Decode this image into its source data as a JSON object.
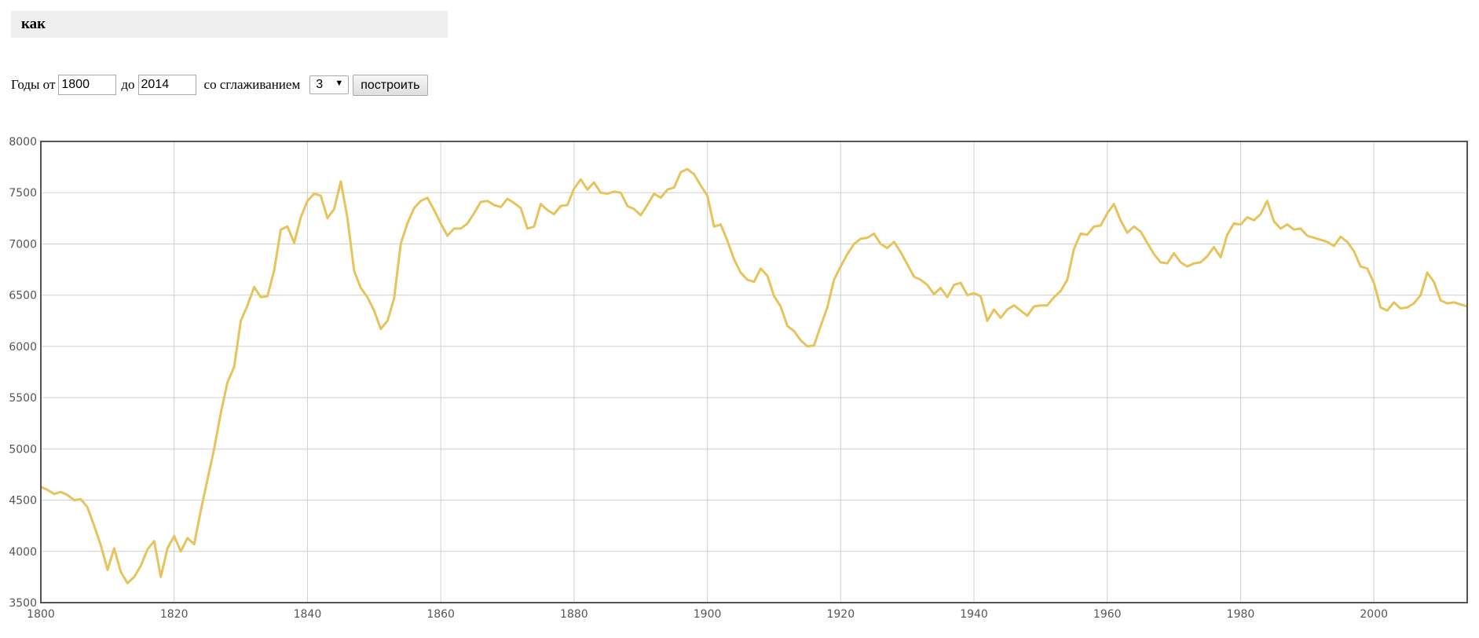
{
  "query": {
    "text": "как"
  },
  "controls": {
    "years_from_label": "Годы от",
    "year_from": "1800",
    "to_label": "до",
    "year_to": "2014",
    "smoothing_label": "со сглаживанием",
    "smoothing_value": "3",
    "build_button": "построить"
  },
  "colors": {
    "line": "#e6c35c",
    "grid": "#d0d0d0",
    "frame": "#555555"
  },
  "chart_data": {
    "type": "line",
    "title": "",
    "xlabel": "",
    "ylabel": "",
    "xlim": [
      1800,
      2014
    ],
    "ylim": [
      3500,
      8000
    ],
    "grid": true,
    "x_ticks": [
      1800,
      1820,
      1840,
      1860,
      1880,
      1900,
      1920,
      1940,
      1960,
      1980,
      2000
    ],
    "y_ticks": [
      3500,
      4000,
      4500,
      5000,
      5500,
      6000,
      6500,
      7000,
      7500,
      8000
    ],
    "series": [
      {
        "x": [
          1800,
          1801,
          1802,
          1803,
          1804,
          1805,
          1806,
          1807,
          1808,
          1809,
          1810,
          1811,
          1812,
          1813,
          1814,
          1815,
          1816,
          1817,
          1818,
          1819,
          1820,
          1821,
          1822,
          1823,
          1824,
          1825,
          1826,
          1827,
          1828,
          1829,
          1830,
          1831,
          1832,
          1833,
          1834,
          1835,
          1836,
          1837,
          1838,
          1839,
          1840,
          1841,
          1842,
          1843,
          1844,
          1845,
          1846,
          1847,
          1848,
          1849,
          1850,
          1851,
          1852,
          1853,
          1854,
          1855,
          1856,
          1857,
          1858,
          1859,
          1860,
          1861,
          1862,
          1863,
          1864,
          1865,
          1866,
          1867,
          1868,
          1869,
          1870,
          1871,
          1872,
          1873,
          1874,
          1875,
          1876,
          1877,
          1878,
          1879,
          1880,
          1881,
          1882,
          1883,
          1884,
          1885,
          1886,
          1887,
          1888,
          1889,
          1890,
          1891,
          1892,
          1893,
          1894,
          1895,
          1896,
          1897,
          1898,
          1899,
          1900,
          1901,
          1902,
          1903,
          1904,
          1905,
          1906,
          1907,
          1908,
          1909,
          1910,
          1911,
          1912,
          1913,
          1914,
          1915,
          1916,
          1917,
          1918,
          1919,
          1920,
          1921,
          1922,
          1923,
          1924,
          1925,
          1926,
          1927,
          1928,
          1929,
          1930,
          1931,
          1932,
          1933,
          1934,
          1935,
          1936,
          1937,
          1938,
          1939,
          1940,
          1941,
          1942,
          1943,
          1944,
          1945,
          1946,
          1947,
          1948,
          1949,
          1950,
          1951,
          1952,
          1953,
          1954,
          1955,
          1956,
          1957,
          1958,
          1959,
          1960,
          1961,
          1962,
          1963,
          1964,
          1965,
          1966,
          1967,
          1968,
          1969,
          1970,
          1971,
          1972,
          1973,
          1974,
          1975,
          1976,
          1977,
          1978,
          1979,
          1980,
          1981,
          1982,
          1983,
          1984,
          1985,
          1986,
          1987,
          1988,
          1989,
          1990,
          1991,
          1992,
          1993,
          1994,
          1995,
          1996,
          1997,
          1998,
          1999,
          2000,
          2001,
          2002,
          2003,
          2004,
          2005,
          2006,
          2007,
          2008,
          2009,
          2010,
          2011,
          2012,
          2013,
          2014
        ],
        "values": [
          4630,
          4600,
          4560,
          4580,
          4550,
          4500,
          4510,
          4430,
          4250,
          4060,
          3820,
          4030,
          3800,
          3690,
          3750,
          3860,
          4020,
          4100,
          3750,
          4030,
          4150,
          4000,
          4130,
          4070,
          4400,
          4700,
          5000,
          5350,
          5650,
          5800,
          6250,
          6400,
          6580,
          6480,
          6490,
          6740,
          7140,
          7170,
          7010,
          7260,
          7420,
          7490,
          7470,
          7250,
          7340,
          7610,
          7250,
          6740,
          6570,
          6480,
          6350,
          6170,
          6250,
          6470,
          7000,
          7200,
          7350,
          7420,
          7450,
          7330,
          7200,
          7080,
          7150,
          7150,
          7200,
          7300,
          7410,
          7420,
          7380,
          7360,
          7440,
          7400,
          7350,
          7150,
          7170,
          7390,
          7330,
          7290,
          7370,
          7380,
          7540,
          7630,
          7530,
          7600,
          7500,
          7490,
          7510,
          7500,
          7370,
          7340,
          7280,
          7380,
          7490,
          7450,
          7530,
          7550,
          7700,
          7730,
          7680,
          7570,
          7470,
          7170,
          7190,
          7030,
          6850,
          6720,
          6650,
          6630,
          6760,
          6690,
          6490,
          6390,
          6200,
          6150,
          6060,
          6000,
          6010,
          6200,
          6380,
          6650,
          6780,
          6900,
          7000,
          7050,
          7060,
          7100,
          7000,
          6960,
          7020,
          6920,
          6800,
          6680,
          6650,
          6600,
          6510,
          6570,
          6480,
          6600,
          6620,
          6500,
          6520,
          6490,
          6250,
          6360,
          6280,
          6360,
          6400,
          6350,
          6300,
          6390,
          6400,
          6400,
          6480,
          6540,
          6650,
          6950,
          7100,
          7090,
          7170,
          7180,
          7300,
          7390,
          7230,
          7110,
          7170,
          7120,
          7010,
          6900,
          6820,
          6810,
          6910,
          6820,
          6780,
          6810,
          6820,
          6880,
          6970,
          6870,
          7090,
          7200,
          7190,
          7260,
          7230,
          7290,
          7420,
          7220,
          7150,
          7190,
          7140,
          7150,
          7080,
          7060,
          7040,
          7020,
          6980,
          7070,
          7020,
          6930,
          6780,
          6760,
          6620,
          6380,
          6350,
          6430,
          6370,
          6380,
          6420,
          6500,
          6720,
          6630,
          6450,
          6420,
          6430,
          6410,
          6390
        ]
      }
    ]
  }
}
